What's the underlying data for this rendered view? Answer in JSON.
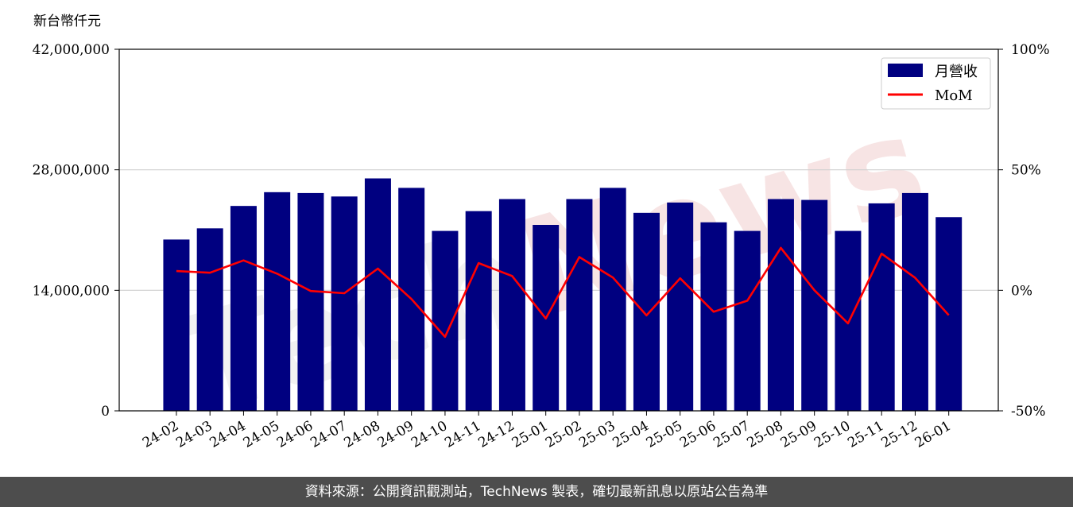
{
  "chart_data": {
    "type": "bar",
    "y_unit_label": "新台幣仟元",
    "categories": [
      "24-02",
      "24-03",
      "24-04",
      "24-05",
      "24-06",
      "24-07",
      "24-08",
      "24-09",
      "24-10",
      "24-11",
      "24-12",
      "25-01",
      "25-02",
      "25-03",
      "25-04",
      "25-05",
      "25-06",
      "25-07",
      "25-08",
      "25-09",
      "25-10",
      "25-11",
      "25-12",
      "26-01"
    ],
    "series": [
      {
        "name": "月營收",
        "type": "bar",
        "axis": "left",
        "color": "#000080",
        "values": [
          19900000,
          21200000,
          23800000,
          25400000,
          25300000,
          24900000,
          27000000,
          25900000,
          20900000,
          23200000,
          24600000,
          21600000,
          24600000,
          25900000,
          23000000,
          24200000,
          21900000,
          20900000,
          24600000,
          24500000,
          20900000,
          24100000,
          25300000,
          22500000
        ]
      },
      {
        "name": "MoM",
        "type": "line",
        "axis": "right",
        "color": "#ff0000",
        "values": [
          8,
          7.3,
          12.4,
          6.9,
          -0.3,
          -1.2,
          9,
          -3.6,
          -19.3,
          11.3,
          5.9,
          -11.7,
          13.8,
          5.3,
          -10.4,
          5.0,
          -8.9,
          -4.3,
          17.6,
          0,
          -13.7,
          15.2,
          5.2,
          -10.3
        ]
      }
    ],
    "ylim_left": [
      0,
      42000000
    ],
    "yticks_left": [
      "0",
      "14,000,000",
      "28,000,000",
      "42,000,000"
    ],
    "ylim_right": [
      -50,
      100
    ],
    "yticks_right": [
      "-50%",
      "0%",
      "50%",
      "100%"
    ],
    "grid": "horizontal",
    "legend": "top-right",
    "watermark": "TechNews"
  },
  "footer_text": "資料來源：公開資訊觀測站，TechNews 製表，確切最新訊息以原站公告為準",
  "colors": {
    "bar": "#000080",
    "line": "#ff0000",
    "footer_bg": "#4d4d4d",
    "watermark": "#f3d3d3"
  }
}
